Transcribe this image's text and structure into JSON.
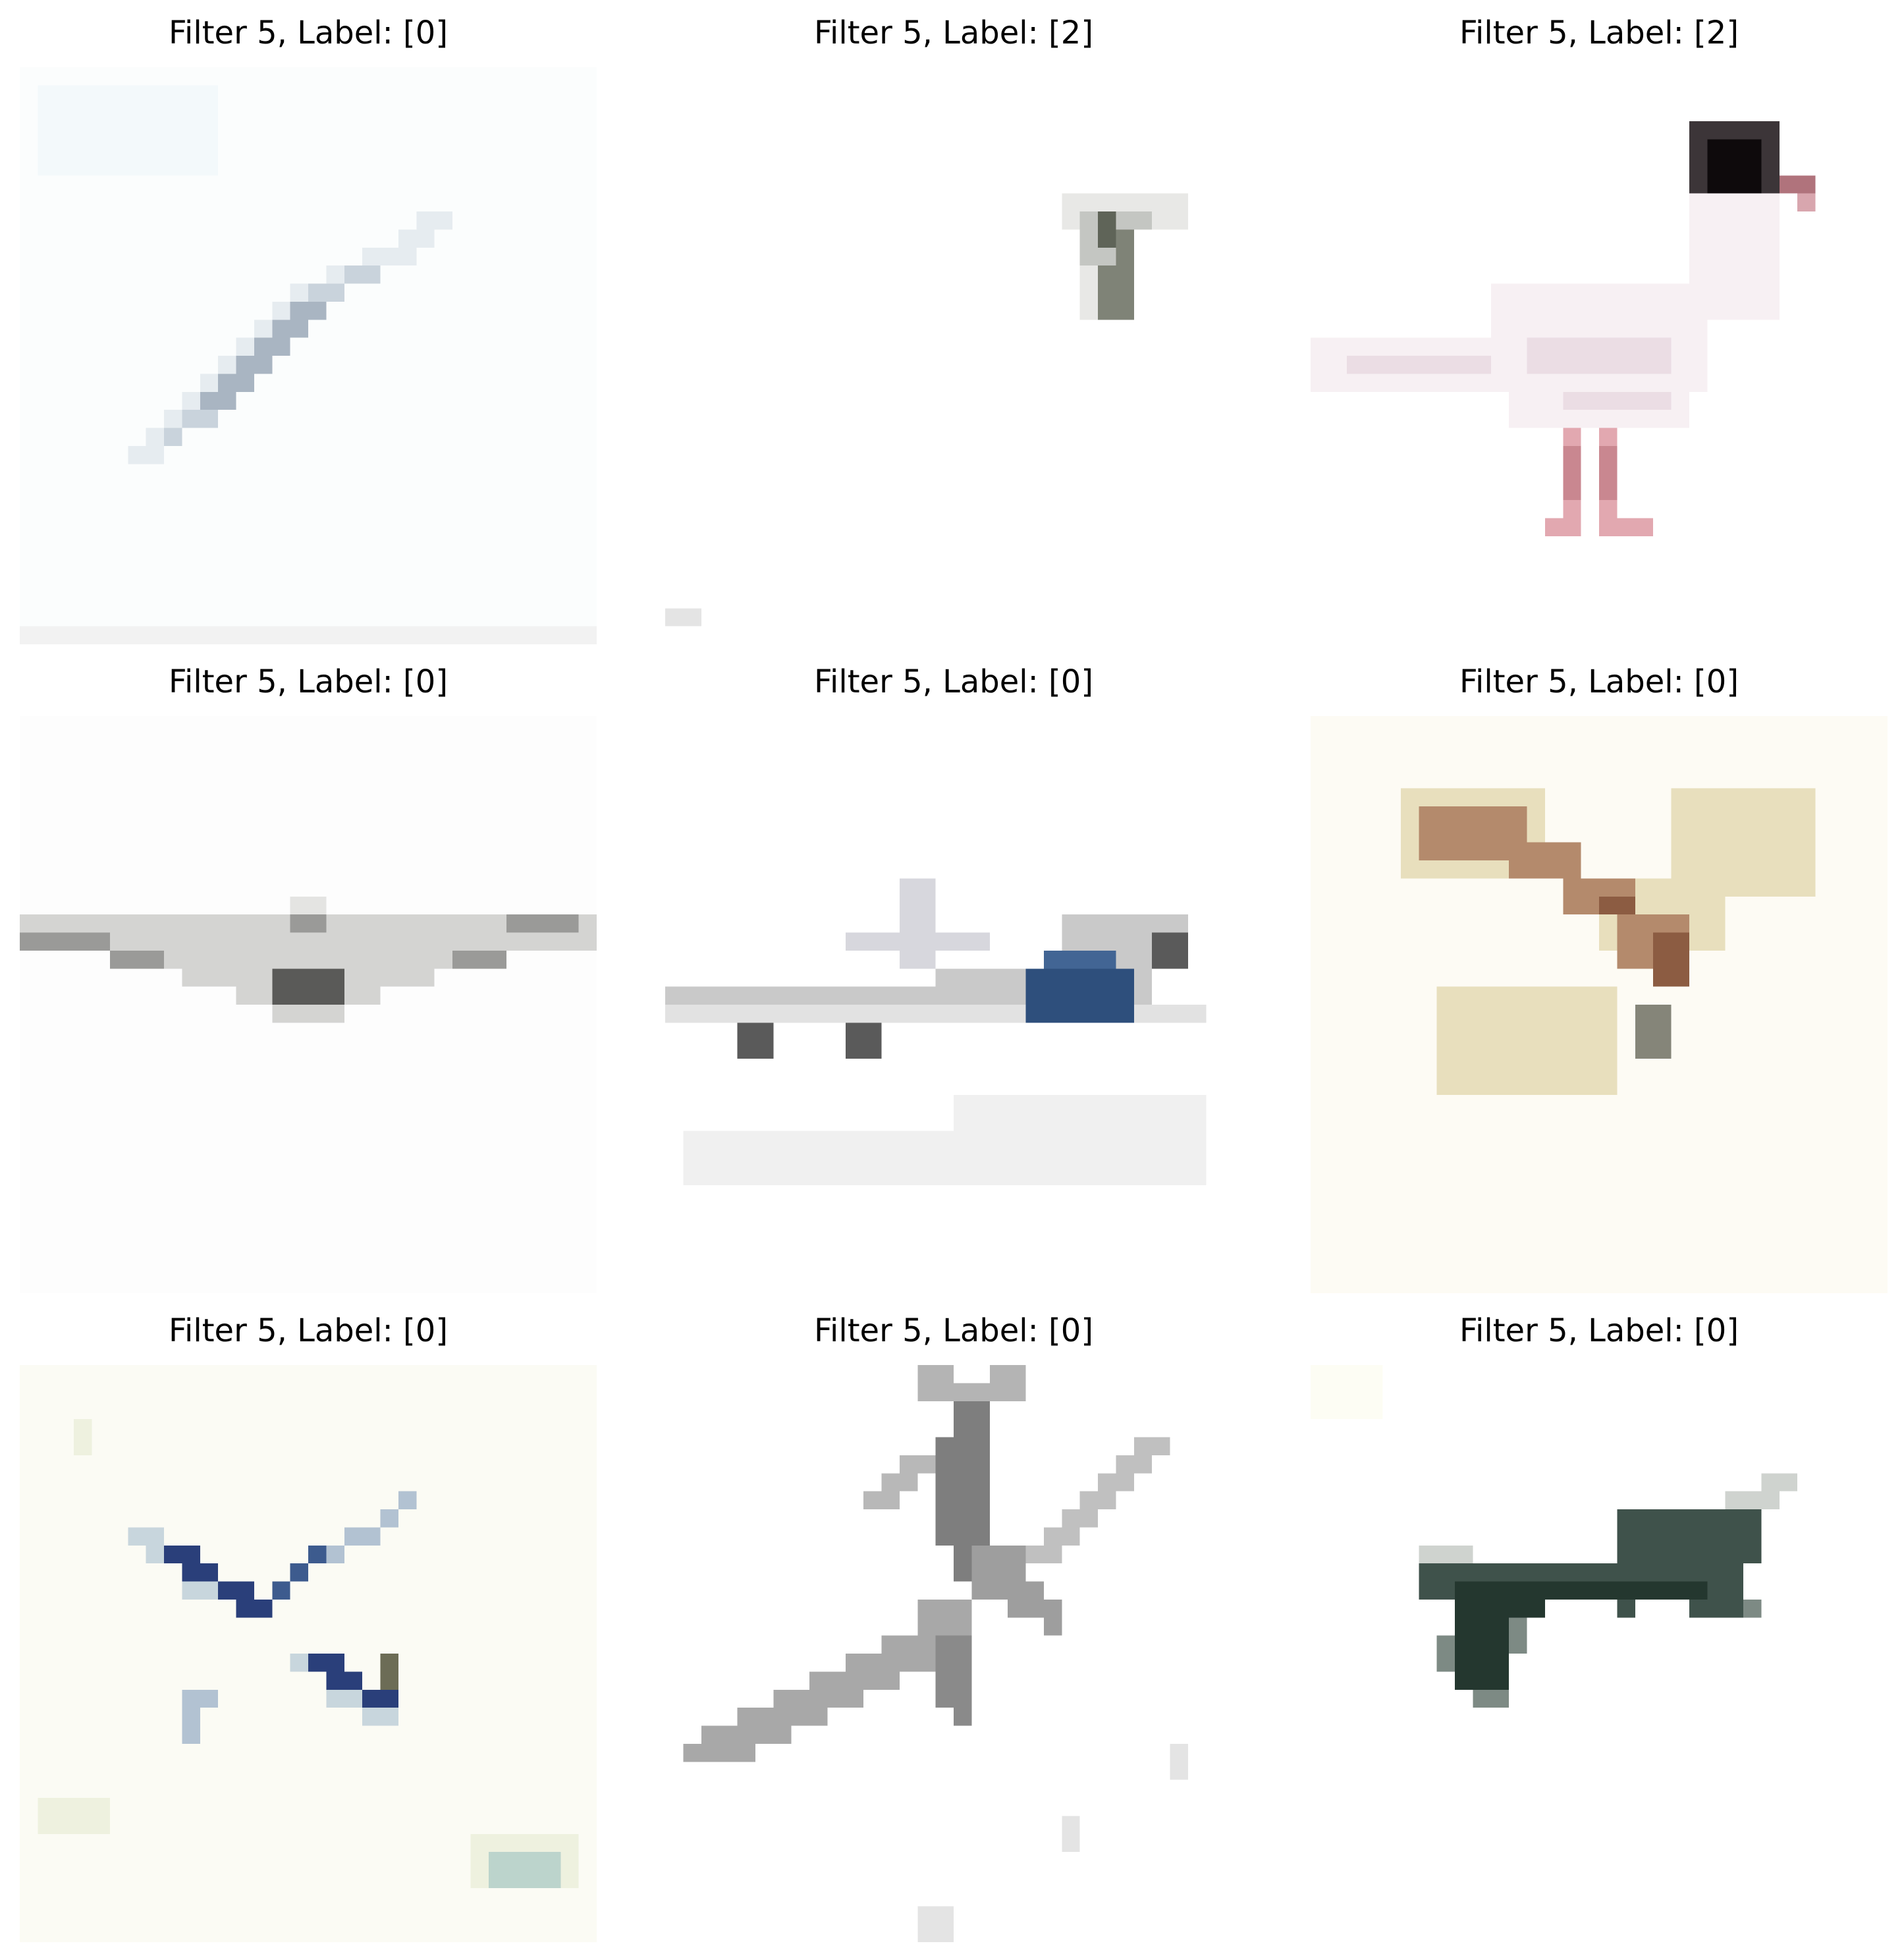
{
  "panels": [
    {
      "title": "Filter 5, Label: [0]",
      "subject": "airplane-diagonal"
    },
    {
      "title": "Filter 5, Label: [2]",
      "subject": "small-bird-distant"
    },
    {
      "title": "Filter 5, Label: [2]",
      "subject": "white-gull-black-head"
    },
    {
      "title": "Filter 5, Label: [0]",
      "subject": "wide-wing-plane"
    },
    {
      "title": "Filter 5, Label: [0]",
      "subject": "jet-airliner"
    },
    {
      "title": "Filter 5, Label: [0]",
      "subject": "tan-propeller-plane"
    },
    {
      "title": "Filter 5, Label: [0]",
      "subject": "blue-x-plane"
    },
    {
      "title": "Filter 5, Label: [0]",
      "subject": "gray-fighter-jet"
    },
    {
      "title": "Filter 5, Label: [0]",
      "subject": "dark-green-plane"
    }
  ]
}
